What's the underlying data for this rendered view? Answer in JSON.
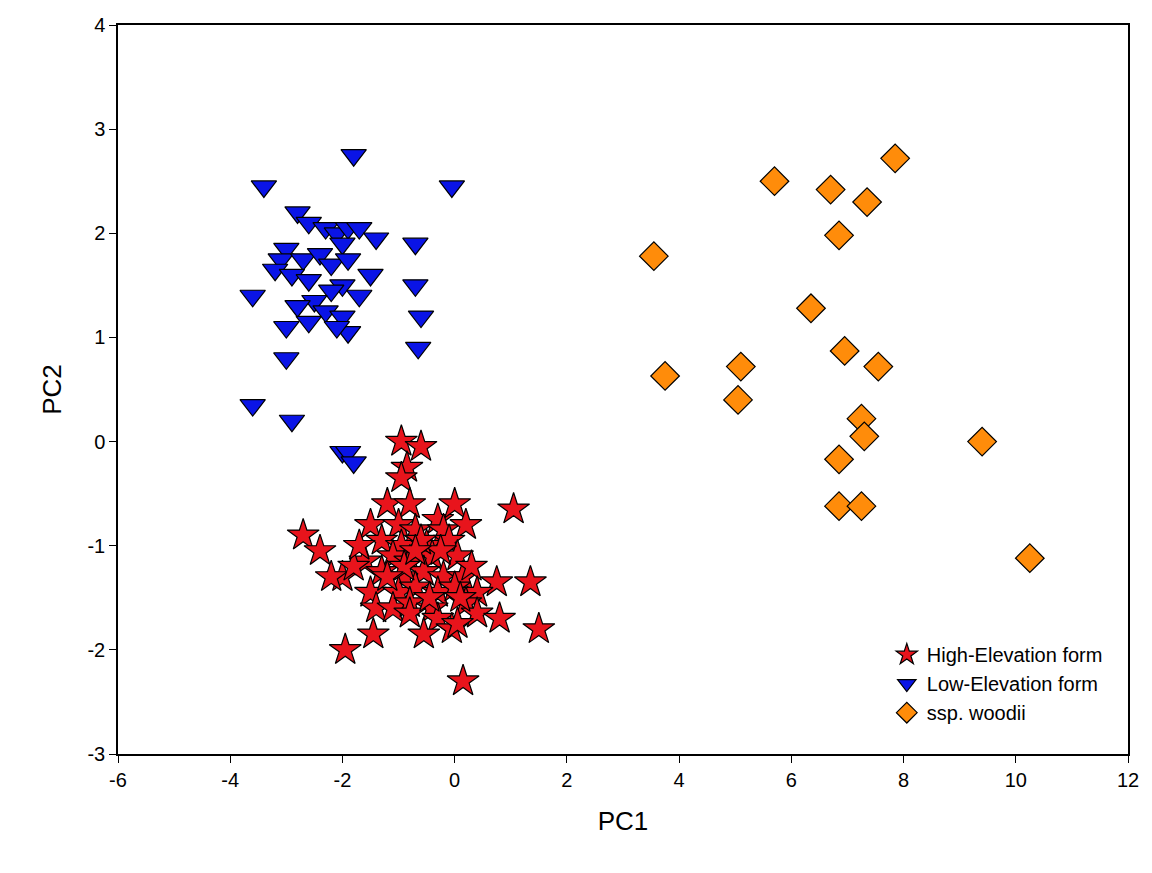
{
  "chart_data": {
    "type": "scatter",
    "x_label": "PC1",
    "y_label": "PC2",
    "xlim": [
      -6,
      12
    ],
    "xticks": [
      -6,
      -4,
      -2,
      0,
      2,
      4,
      6,
      8,
      10,
      12
    ],
    "ylim": [
      -3,
      4
    ],
    "yticks": [
      -3,
      -2,
      -1,
      0,
      1,
      2,
      3,
      4
    ],
    "grid": false,
    "legend": "bottom right",
    "series": [
      {
        "name": "High-Elevation form",
        "color": "#e8141c",
        "marker": "star",
        "x": [
          -0.95,
          -0.6,
          -0.85,
          -0.95,
          1.05,
          -2.7,
          -2.4,
          -1.2,
          -0.8,
          -0.3,
          0.0,
          -1.5,
          -1.0,
          -0.7,
          -0.2,
          0.2,
          -1.3,
          -0.95,
          -0.5,
          -0.1,
          -1.6,
          -1.1,
          -0.8,
          -0.4,
          0.05,
          -2.0,
          -2.2,
          -1.8,
          -1.3,
          -0.9,
          -0.55,
          -0.2,
          0.15,
          0.3,
          0.75,
          1.35,
          -1.5,
          -1.0,
          -0.7,
          -0.3,
          0.0,
          0.4,
          -1.4,
          -1.1,
          -0.8,
          -0.4,
          0.2,
          0.4,
          -0.3,
          0.8,
          -1.45,
          -0.8,
          -0.55,
          -0.05,
          0.05,
          1.5,
          -1.95,
          0.15,
          -0.9,
          -0.6,
          -0.25,
          -1.2,
          -0.7,
          0.1,
          -0.45,
          -1.7
        ],
        "y": [
          0.0,
          -0.05,
          -0.25,
          -0.35,
          -0.65,
          -0.9,
          -1.05,
          -0.6,
          -0.6,
          -0.75,
          -0.6,
          -0.8,
          -0.8,
          -0.85,
          -0.85,
          -0.8,
          -0.95,
          -1.0,
          -1.0,
          -0.95,
          -1.15,
          -1.1,
          -1.15,
          -1.1,
          -1.1,
          -1.3,
          -1.3,
          -1.2,
          -1.25,
          -1.3,
          -1.25,
          -1.3,
          -1.3,
          -1.2,
          -1.35,
          -1.35,
          -1.45,
          -1.45,
          -1.4,
          -1.45,
          -1.4,
          -1.45,
          -1.6,
          -1.6,
          -1.55,
          -1.6,
          -1.55,
          -1.65,
          -1.7,
          -1.7,
          -1.85,
          -1.65,
          -1.85,
          -1.8,
          -1.75,
          -1.8,
          -2.0,
          -2.3,
          -1.2,
          -0.95,
          -1.05,
          -1.3,
          -1.05,
          -1.5,
          -1.5,
          -1.0
        ]
      },
      {
        "name": "Low-Elevation form",
        "color": "#0a14e6",
        "marker": "triangle-down",
        "x": [
          -1.8,
          -0.05,
          -3.4,
          -2.8,
          -2.6,
          -2.3,
          -2.1,
          -1.9,
          -1.7,
          -2.0,
          -1.4,
          -0.7,
          -3.0,
          -3.1,
          -2.7,
          -2.4,
          -2.2,
          -1.9,
          -3.2,
          -2.9,
          -2.6,
          -1.5,
          -2.0,
          -2.2,
          -1.7,
          -0.7,
          -3.6,
          -2.5,
          -2.8,
          -2.3,
          -2.0,
          -2.6,
          -1.9,
          -2.1,
          -0.6,
          -3.0,
          -3.0,
          -0.65,
          -3.6,
          -2.9,
          -2.0,
          -1.9,
          -1.8
        ],
        "y": [
          2.75,
          2.45,
          2.45,
          2.2,
          2.1,
          2.05,
          2.0,
          2.05,
          2.05,
          1.9,
          1.95,
          1.9,
          1.85,
          1.75,
          1.75,
          1.8,
          1.7,
          1.75,
          1.65,
          1.6,
          1.55,
          1.6,
          1.5,
          1.45,
          1.4,
          1.5,
          1.4,
          1.35,
          1.3,
          1.25,
          1.2,
          1.15,
          1.05,
          1.1,
          1.2,
          1.1,
          0.8,
          0.9,
          0.35,
          0.2,
          -0.1,
          -0.1,
          -0.2
        ]
      },
      {
        "name": "ssp. woodii",
        "color": "#ff8c0a",
        "marker": "diamond",
        "x": [
          3.55,
          3.75,
          5.1,
          5.05,
          5.7,
          6.7,
          7.85,
          7.35,
          6.85,
          6.35,
          6.95,
          7.55,
          7.25,
          7.3,
          6.85,
          6.85,
          7.25,
          9.4,
          10.25
        ],
        "y": [
          1.78,
          0.63,
          0.72,
          0.4,
          2.5,
          2.42,
          2.72,
          2.3,
          1.98,
          1.28,
          0.87,
          0.72,
          0.22,
          0.05,
          -0.17,
          -0.62,
          -0.62,
          0.0,
          -1.12
        ]
      }
    ]
  }
}
